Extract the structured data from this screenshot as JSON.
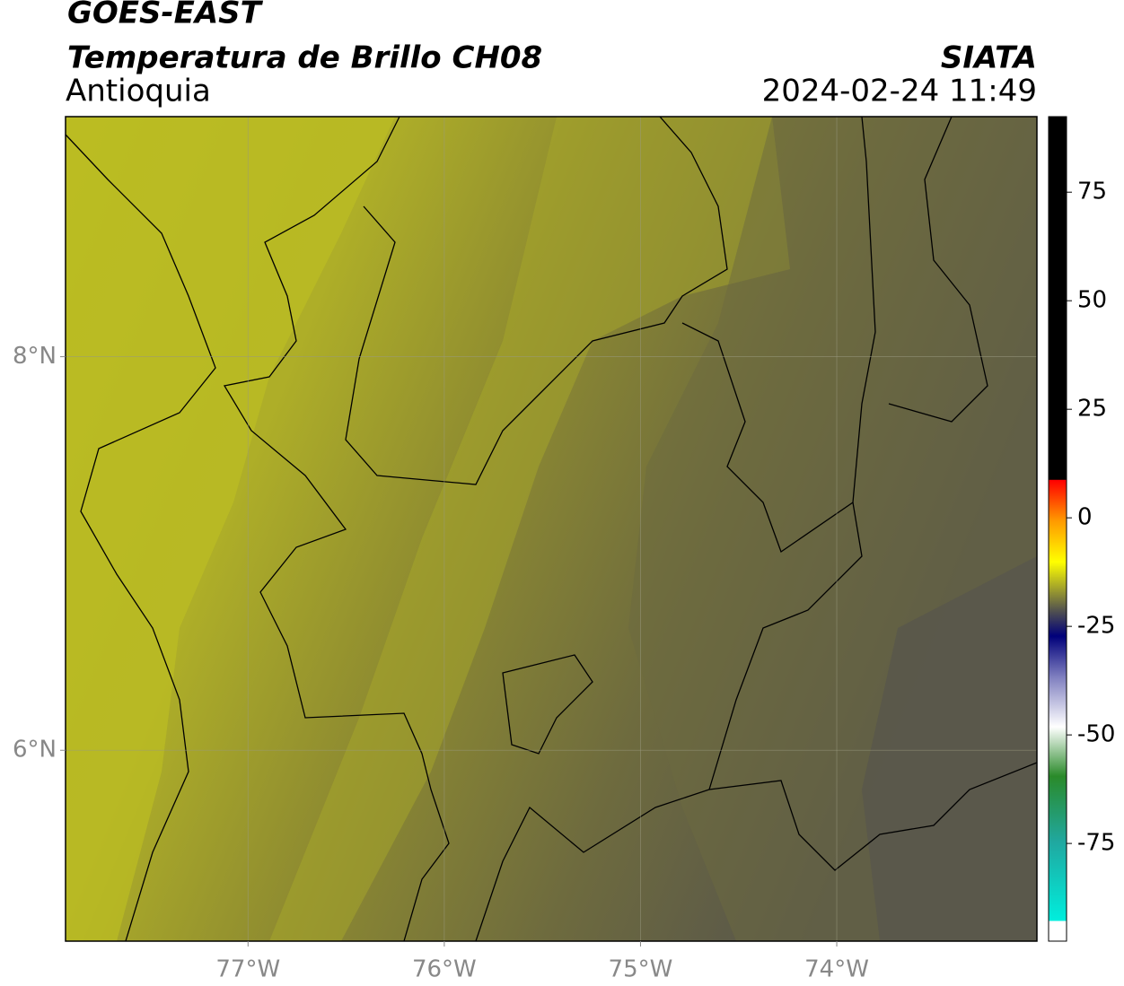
{
  "header": {
    "title": "GOES-EAST",
    "subtitle": "Temperatura de Brillo CH08",
    "region": "Antioquia",
    "brand": "SIATA",
    "datetime": "2024-02-24 11:49"
  },
  "map": {
    "lonlim": [
      -77.93,
      -72.98
    ],
    "latlim": [
      5.03,
      9.22
    ],
    "lonticks": [
      {
        "value": -77,
        "label": "77°W"
      },
      {
        "value": -76,
        "label": "76°W"
      },
      {
        "value": -75,
        "label": "75°W"
      },
      {
        "value": -74,
        "label": "74°W"
      }
    ],
    "latticks": [
      {
        "value": 8,
        "label": "8°N"
      },
      {
        "value": 6,
        "label": "6°N"
      }
    ]
  },
  "colorbar": {
    "lim": [
      -97.5,
      92.4
    ],
    "ticks": [
      75,
      50,
      25,
      0,
      -25,
      -50,
      -75
    ]
  }
}
